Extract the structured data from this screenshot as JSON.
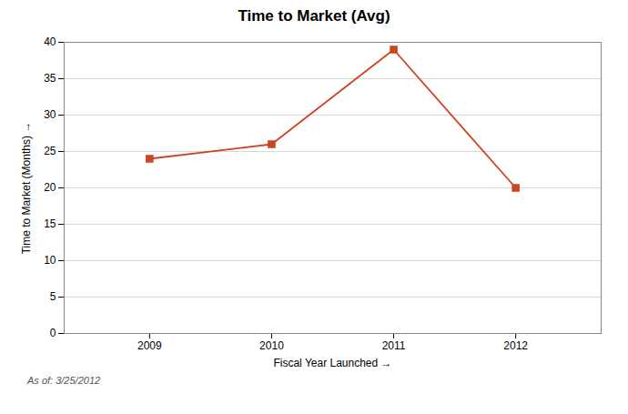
{
  "chart_data": {
    "type": "line",
    "title": "Time to Market (Avg)",
    "xlabel": "Fiscal Year Launched",
    "ylabel": "Time to Market (Months)",
    "x": [
      2009,
      2010,
      2011,
      2012
    ],
    "values": [
      24,
      26,
      39,
      20
    ],
    "color": "#CC4422",
    "marker": "square",
    "xlim": [
      2008.3,
      2012.7
    ],
    "xticks": [
      2009,
      2010,
      2011,
      2012
    ],
    "ylim": [
      0,
      40
    ],
    "yticks": [
      0,
      5,
      10,
      15,
      20,
      25,
      30,
      35,
      40
    ],
    "grid": true,
    "annotation": "As of: 3/25/2012"
  }
}
